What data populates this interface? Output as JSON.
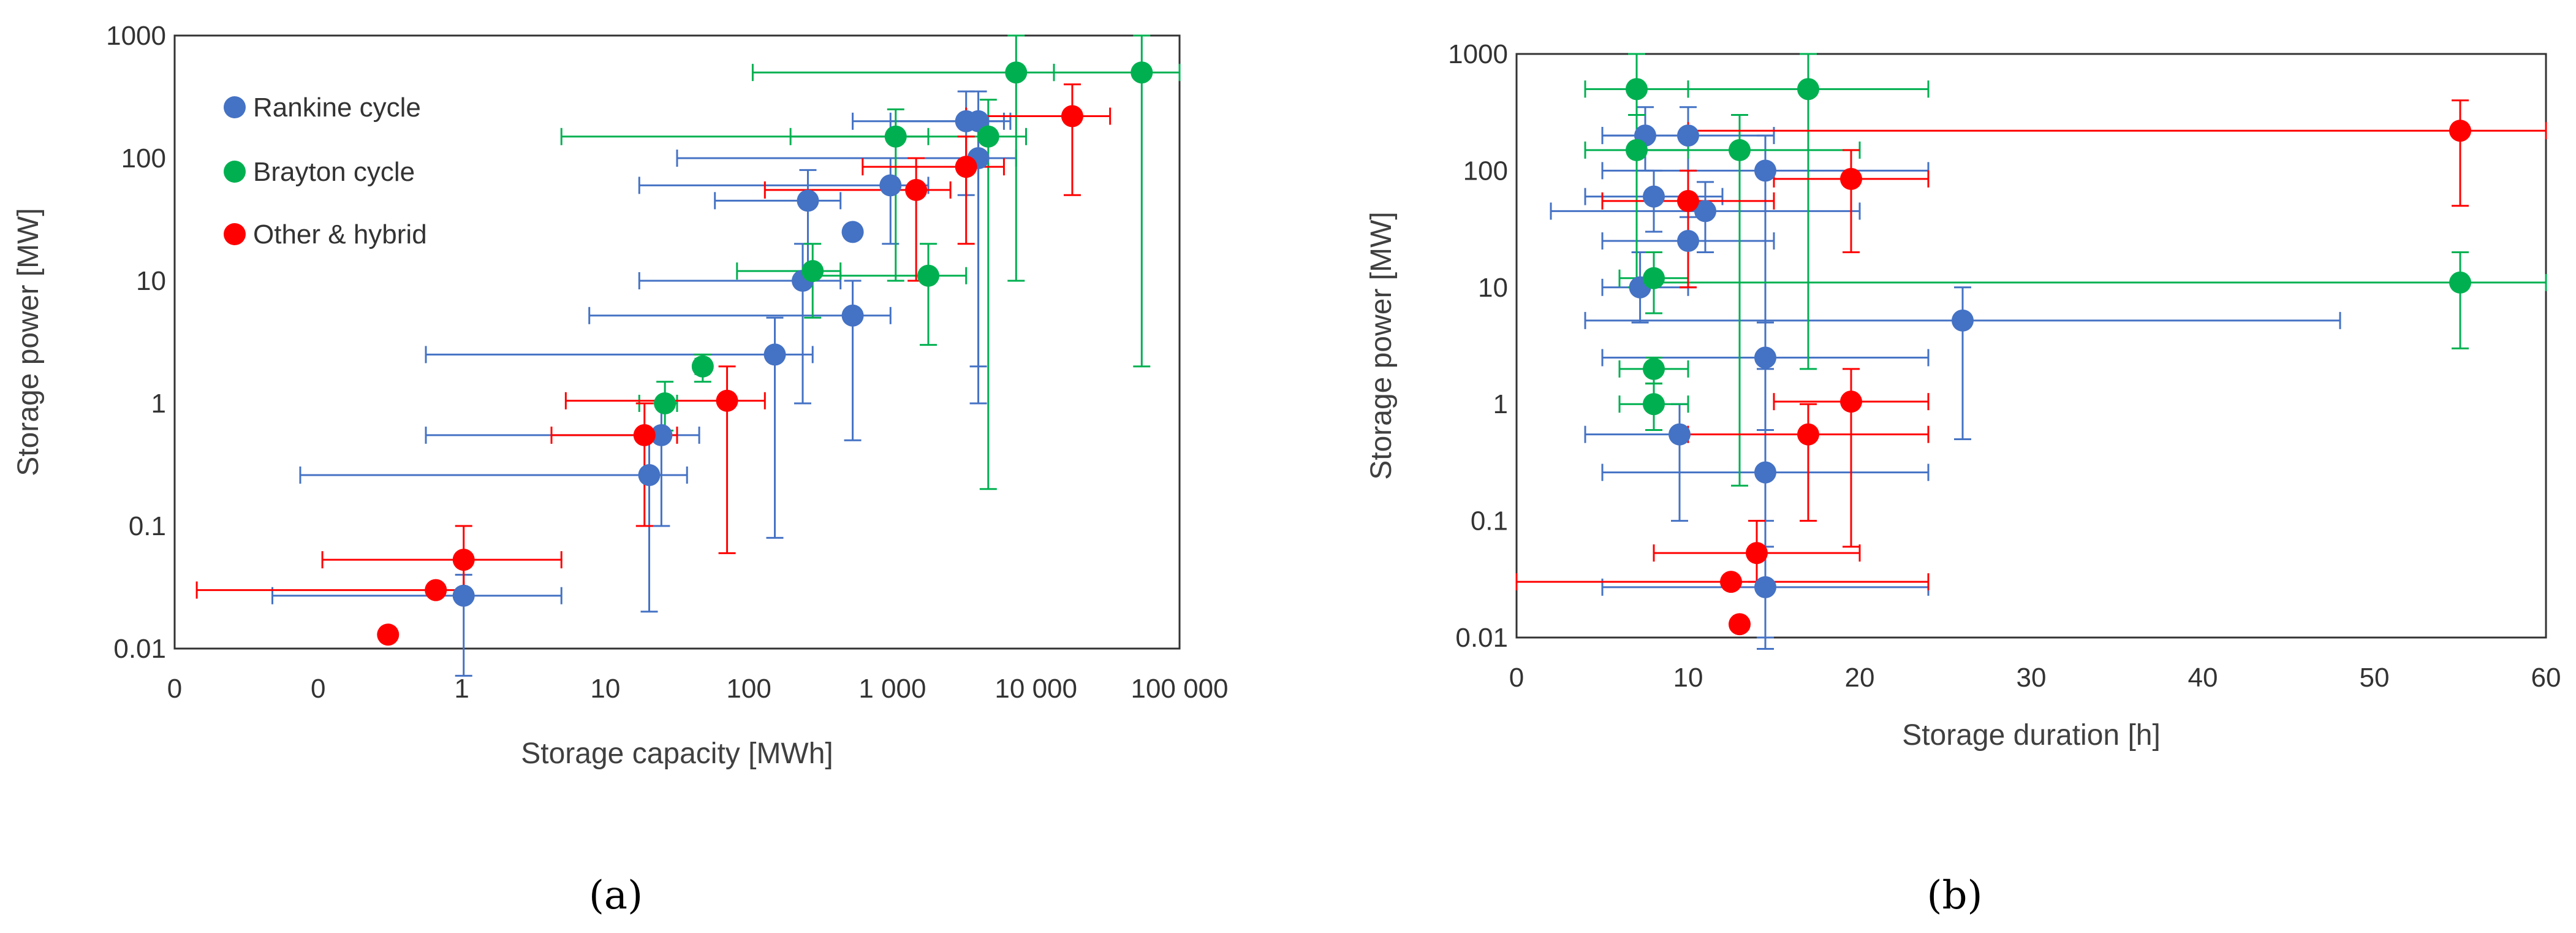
{
  "colors": {
    "rankine": "#4472C4",
    "brayton": "#00B050",
    "other": "#FF0000"
  },
  "panel_labels": [
    "(a)",
    "(b)"
  ],
  "chart_data": [
    {
      "type": "scatter",
      "title": "",
      "xlabel": "Storage capacity [MWh]",
      "ylabel": "Storage power [MW]",
      "xscale": "log",
      "yscale": "log",
      "xlim": [
        0.001,
        100000
      ],
      "ylim": [
        0.01,
        1000
      ],
      "grid": false,
      "legend_position": "top-left",
      "x_tick_labels": [
        "0",
        "0",
        "1",
        "10",
        "100",
        "1 000",
        "10 000",
        "100 000"
      ],
      "y_tick_labels": [
        "0.01",
        "0.1",
        "1",
        "10",
        "100",
        "1000"
      ],
      "series": [
        {
          "name": "Rankine cycle",
          "color_key": "rankine",
          "points": [
            {
              "x": 0.2,
              "y": 0.027,
              "xerr": [
                0.006,
                1.2
              ],
              "yerr": [
                0.006,
                0.04
              ]
            },
            {
              "x": 6,
              "y": 0.26,
              "xerr": [
                0.01,
                12
              ],
              "yerr": [
                0.02,
                0.6
              ]
            },
            {
              "x": 7.5,
              "y": 0.55,
              "xerr": [
                0.1,
                15
              ],
              "yerr": [
                0.1,
                1
              ]
            },
            {
              "x": 60,
              "y": 2.5,
              "xerr": [
                0.1,
                120
              ],
              "yerr": [
                0.08,
                5
              ]
            },
            {
              "x": 250,
              "y": 5.2,
              "xerr": [
                2,
                500
              ],
              "yerr": [
                0.5,
                10
              ]
            },
            {
              "x": 100,
              "y": 10,
              "xerr": [
                5,
                200
              ],
              "yerr": [
                1,
                20
              ]
            },
            {
              "x": 110,
              "y": 45,
              "xerr": [
                20,
                200
              ],
              "yerr": [
                10,
                80
              ]
            },
            {
              "x": 250,
              "y": 25,
              "xerr": null,
              "yerr": null
            },
            {
              "x": 500,
              "y": 60,
              "xerr": [
                5,
                1000
              ],
              "yerr": [
                20,
                100
              ]
            },
            {
              "x": 2000,
              "y": 200,
              "xerr": [
                250,
                4000
              ],
              "yerr": [
                50,
                350
              ]
            },
            {
              "x": 2500,
              "y": 100,
              "xerr": [
                10,
                5000
              ],
              "yerr": [
                1,
                200
              ]
            },
            {
              "x": 2500,
              "y": 200,
              "xerr": [
                500,
                4500
              ],
              "yerr": [
                2,
                350
              ]
            }
          ]
        },
        {
          "name": "Brayton cycle",
          "color_key": "brayton",
          "points": [
            {
              "x": 8,
              "y": 1.0,
              "xerr": [
                5,
                10
              ],
              "yerr": [
                0.6,
                1.5
              ]
            },
            {
              "x": 16,
              "y": 2.0,
              "xerr": [
                14,
                18
              ],
              "yerr": [
                1.5,
                2.5
              ]
            },
            {
              "x": 120,
              "y": 12,
              "xerr": [
                30,
                200
              ],
              "yerr": [
                5,
                20
              ]
            },
            {
              "x": 550,
              "y": 150,
              "xerr": [
                1.2,
                1000
              ],
              "yerr": [
                10,
                250
              ]
            },
            {
              "x": 1000,
              "y": 11,
              "xerr": [
                110,
                2000
              ],
              "yerr": [
                3,
                20
              ]
            },
            {
              "x": 3000,
              "y": 150,
              "xerr": [
                80,
                6000
              ],
              "yerr": [
                0.2,
                300
              ]
            },
            {
              "x": 5000,
              "y": 500,
              "xerr": [
                40,
                10000
              ],
              "yerr": [
                10,
                1000
              ]
            },
            {
              "x": 50000,
              "y": 500,
              "xerr": [
                10000,
                100000
              ],
              "yerr": [
                2,
                1000
              ]
            }
          ]
        },
        {
          "name": "Other & hybrid",
          "color_key": "other",
          "points": [
            {
              "x": 0.05,
              "y": 0.013,
              "xerr": null,
              "yerr": null
            },
            {
              "x": 0.12,
              "y": 0.03,
              "xerr": [
                0.0015,
                0.2
              ],
              "yerr": null
            },
            {
              "x": 0.2,
              "y": 0.053,
              "xerr": [
                0.015,
                1.2
              ],
              "yerr": [
                0.03,
                0.1
              ]
            },
            {
              "x": 5.5,
              "y": 0.55,
              "xerr": [
                1,
                10
              ],
              "yerr": [
                0.1,
                1
              ]
            },
            {
              "x": 25,
              "y": 1.05,
              "xerr": [
                1.3,
                50
              ],
              "yerr": [
                0.06,
                2
              ]
            },
            {
              "x": 800,
              "y": 55,
              "xerr": [
                50,
                1500
              ],
              "yerr": [
                10,
                100
              ]
            },
            {
              "x": 2000,
              "y": 85,
              "xerr": [
                300,
                4000
              ],
              "yerr": [
                20,
                150
              ]
            },
            {
              "x": 14000,
              "y": 220,
              "xerr": [
                2000,
                28000
              ],
              "yerr": [
                50,
                400
              ]
            }
          ]
        }
      ]
    },
    {
      "type": "scatter",
      "title": "",
      "xlabel": "Storage duration [h]",
      "ylabel": "Storage power [MW]",
      "xscale": "linear",
      "yscale": "log",
      "xlim": [
        0,
        60
      ],
      "ylim": [
        0.01,
        1000
      ],
      "grid": false,
      "x_tick_labels": [
        "0",
        "10",
        "20",
        "30",
        "40",
        "50",
        "60"
      ],
      "y_tick_labels": [
        "0.01",
        "0.1",
        "1",
        "10",
        "100",
        "1000"
      ],
      "series": [
        {
          "name": "Rankine cycle",
          "color_key": "rankine",
          "points": [
            {
              "x": 14.5,
              "y": 0.027,
              "xerr": [
                5,
                24
              ],
              "yerr": [
                0.008,
                0.06
              ]
            },
            {
              "x": 14.5,
              "y": 0.26,
              "xerr": [
                5,
                24
              ],
              "yerr": [
                0.01,
                0.6
              ]
            },
            {
              "x": 9.5,
              "y": 0.55,
              "xerr": [
                4,
                10
              ],
              "yerr": [
                0.1,
                1
              ]
            },
            {
              "x": 14.5,
              "y": 2.5,
              "xerr": [
                5,
                24
              ],
              "yerr": [
                0.1,
                5
              ]
            },
            {
              "x": 26,
              "y": 5.2,
              "xerr": [
                4,
                48
              ],
              "yerr": [
                0.5,
                10
              ]
            },
            {
              "x": 7.2,
              "y": 10,
              "xerr": [
                5,
                10
              ],
              "yerr": [
                5,
                20
              ]
            },
            {
              "x": 10,
              "y": 25,
              "xerr": [
                5,
                15
              ],
              "yerr": [
                10,
                40
              ]
            },
            {
              "x": 11,
              "y": 45,
              "xerr": [
                2,
                20
              ],
              "yerr": [
                20,
                80
              ]
            },
            {
              "x": 8,
              "y": 60,
              "xerr": [
                4,
                12
              ],
              "yerr": [
                30,
                100
              ]
            },
            {
              "x": 14.5,
              "y": 100,
              "xerr": [
                5,
                24
              ],
              "yerr": [
                2,
                200
              ]
            },
            {
              "x": 7.5,
              "y": 200,
              "xerr": [
                5,
                10
              ],
              "yerr": [
                100,
                350
              ]
            },
            {
              "x": 10,
              "y": 200,
              "xerr": [
                5,
                15
              ],
              "yerr": [
                100,
                350
              ]
            }
          ]
        },
        {
          "name": "Brayton cycle",
          "color_key": "brayton",
          "points": [
            {
              "x": 8,
              "y": 1.0,
              "xerr": [
                6,
                10
              ],
              "yerr": [
                0.6,
                1.5
              ]
            },
            {
              "x": 8,
              "y": 2.0,
              "xerr": [
                6,
                10
              ],
              "yerr": [
                1.5,
                2.5
              ]
            },
            {
              "x": 8,
              "y": 12,
              "xerr": [
                6,
                10
              ],
              "yerr": [
                6,
                20
              ]
            },
            {
              "x": 55,
              "y": 11,
              "xerr": [
                8,
                60
              ],
              "yerr": [
                3,
                20
              ]
            },
            {
              "x": 13,
              "y": 150,
              "xerr": [
                7,
                20
              ],
              "yerr": [
                0.2,
                300
              ]
            },
            {
              "x": 7,
              "y": 150,
              "xerr": [
                4,
                10
              ],
              "yerr": [
                10,
                300
              ]
            },
            {
              "x": 7,
              "y": 500,
              "xerr": [
                4,
                10
              ],
              "yerr": [
                10,
                1000
              ]
            },
            {
              "x": 17,
              "y": 500,
              "xerr": [
                10,
                24
              ],
              "yerr": [
                2,
                1000
              ]
            }
          ]
        },
        {
          "name": "Other & hybrid",
          "color_key": "other",
          "points": [
            {
              "x": 13,
              "y": 0.013,
              "xerr": null,
              "yerr": null
            },
            {
              "x": 12.5,
              "y": 0.03,
              "xerr": [
                0,
                24
              ],
              "yerr": null
            },
            {
              "x": 14,
              "y": 0.053,
              "xerr": [
                8,
                20
              ],
              "yerr": [
                0.03,
                0.1
              ]
            },
            {
              "x": 17,
              "y": 0.55,
              "xerr": [
                10,
                24
              ],
              "yerr": [
                0.1,
                1
              ]
            },
            {
              "x": 19.5,
              "y": 1.05,
              "xerr": [
                15,
                24
              ],
              "yerr": [
                0.06,
                2
              ]
            },
            {
              "x": 10,
              "y": 55,
              "xerr": [
                5,
                15
              ],
              "yerr": [
                10,
                100
              ]
            },
            {
              "x": 19.5,
              "y": 85,
              "xerr": [
                15,
                24
              ],
              "yerr": [
                20,
                150
              ]
            },
            {
              "x": 55,
              "y": 220,
              "xerr": [
                10,
                60
              ],
              "yerr": [
                50,
                400
              ]
            }
          ]
        }
      ]
    }
  ]
}
